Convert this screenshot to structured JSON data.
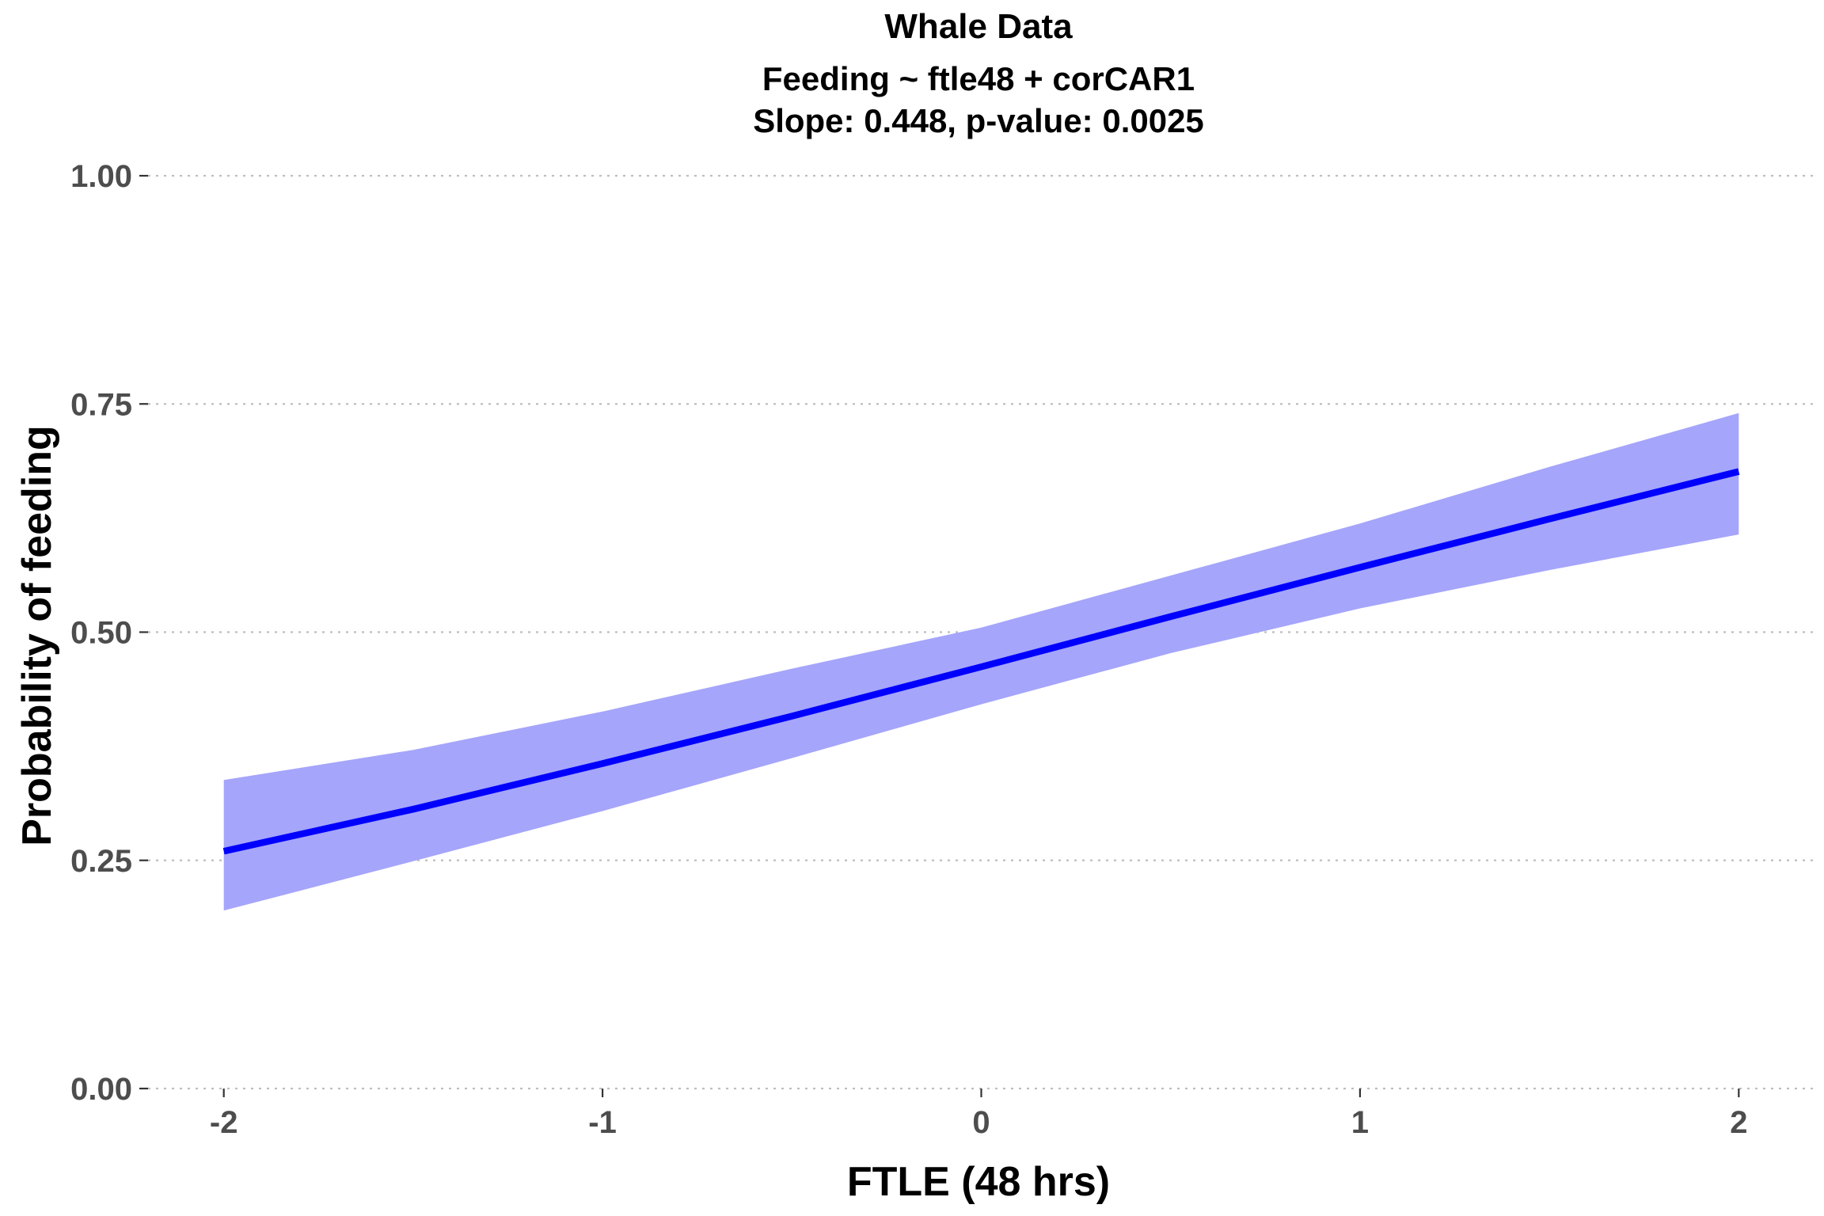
{
  "chart_data": {
    "type": "line",
    "title": "Whale Data",
    "subtitle_lines": [
      "Feeding ~ ftle48 + corCAR1",
      "Slope: 0.448, p-value: 0.0025"
    ],
    "xlabel": "FTLE (48 hrs)",
    "ylabel": "Probability of feeding",
    "xlim": [
      -2.2,
      2.2
    ],
    "ylim": [
      0,
      1
    ],
    "x_ticks": [
      -2,
      -1,
      0,
      1,
      2
    ],
    "x_tick_labels": [
      "-2",
      "-1",
      "0",
      "1",
      "2"
    ],
    "y_ticks": [
      0,
      0.25,
      0.5,
      0.75,
      1
    ],
    "y_tick_labels": [
      "0.00",
      "0.25",
      "0.50",
      "0.75",
      "1.00"
    ],
    "grid": "horizontal dotted major lines only",
    "series": [
      {
        "x": [
          -2,
          -1.5,
          -1,
          -0.5,
          0,
          0.5,
          1,
          1.5,
          2
        ],
        "y": [
          0.26,
          0.306,
          0.356,
          0.408,
          0.462,
          0.517,
          0.571,
          0.624,
          0.676
        ],
        "ci_lower": [
          0.195,
          0.249,
          0.304,
          0.362,
          0.421,
          0.477,
          0.526,
          0.568,
          0.607
        ],
        "ci_upper": [
          0.338,
          0.371,
          0.413,
          0.46,
          0.505,
          0.562,
          0.619,
          0.681,
          0.74
        ]
      }
    ],
    "colors": {
      "line": "#0000ff",
      "ribbon": "#a5a5fb",
      "grid": "#bebebe",
      "tick_label": "#4d4d4d",
      "tick_mark": "#333333"
    }
  }
}
